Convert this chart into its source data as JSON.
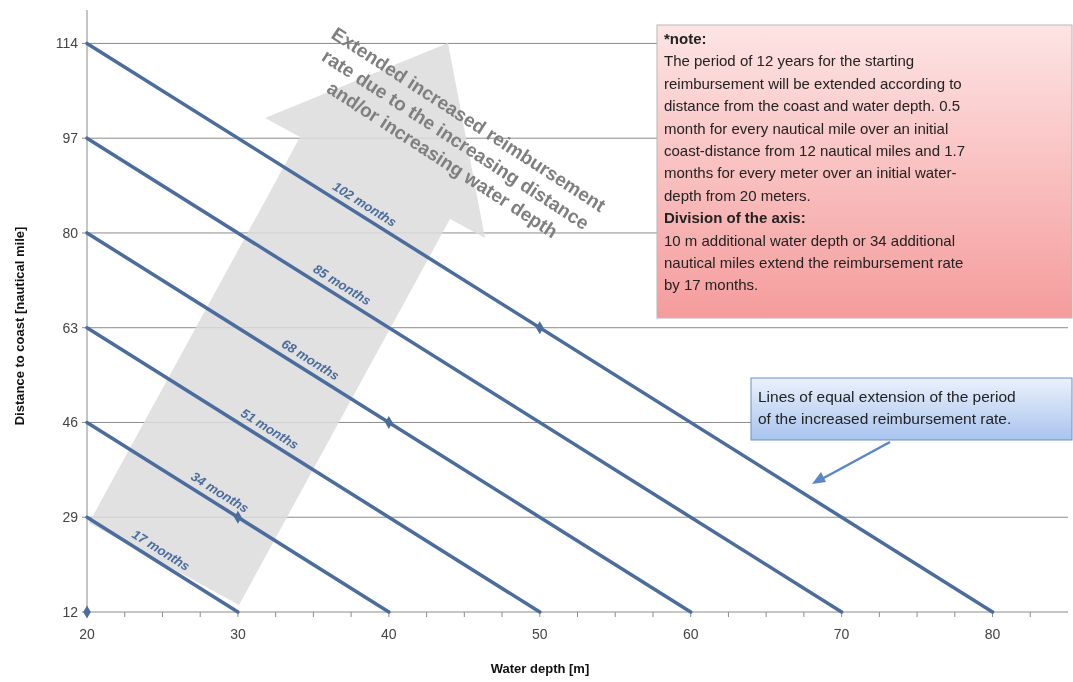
{
  "chart_data": {
    "type": "line",
    "xlabel": "Water depth [m]",
    "ylabel": "Distance to coast [nautical mile]",
    "xlim": [
      20,
      85
    ],
    "ylim": [
      12,
      120
    ],
    "xticks": [
      20,
      {
        "value": 22.5,
        "label": null
      },
      {
        "value": 25,
        "label": null
      },
      {
        "value": 27.5,
        "label": null
      },
      30,
      {
        "value": 32.5,
        "label": null
      },
      {
        "value": 35,
        "label": null
      },
      {
        "value": 37.5,
        "label": null
      },
      40,
      {
        "value": 42.5,
        "label": null
      },
      {
        "value": 45,
        "label": null
      },
      {
        "value": 47.5,
        "label": null
      },
      50,
      {
        "value": 52.5,
        "label": null
      },
      {
        "value": 55,
        "label": null
      },
      {
        "value": 57.5,
        "label": null
      },
      60,
      {
        "value": 62.5,
        "label": null
      },
      {
        "value": 65,
        "label": null
      },
      {
        "value": 67.5,
        "label": null
      },
      70,
      {
        "value": 72.5,
        "label": null
      },
      {
        "value": 75,
        "label": null
      },
      {
        "value": 77.5,
        "label": null
      },
      80,
      {
        "value": 82.5,
        "label": null
      }
    ],
    "yticks": [
      12,
      29,
      46,
      63,
      80,
      97,
      114
    ],
    "grid": "y",
    "line_style": "solid",
    "series": [
      {
        "name": "17 months",
        "color": "#4a6d9e",
        "x": [
          20,
          30
        ],
        "values": [
          29,
          12
        ],
        "marker": "none"
      },
      {
        "name": "34 months",
        "color": "#4a6d9e",
        "x": [
          20,
          40
        ],
        "values": [
          46,
          12
        ],
        "marker": "none"
      },
      {
        "name": "51 months",
        "color": "#4a6d9e",
        "x": [
          20,
          50
        ],
        "values": [
          63,
          12
        ],
        "marker": "none"
      },
      {
        "name": "68 months",
        "color": "#4a6d9e",
        "x": [
          20,
          60
        ],
        "values": [
          80,
          12
        ],
        "marker": "none"
      },
      {
        "name": "85 months",
        "color": "#4a6d9e",
        "x": [
          20,
          70
        ],
        "values": [
          97,
          12
        ],
        "marker": "none"
      },
      {
        "name": "102 months",
        "color": "#4a6d9e",
        "x": [
          20,
          80
        ],
        "values": [
          114,
          12
        ],
        "marker": "none"
      },
      {
        "type": "scatter",
        "color": "#4a6d9e",
        "x": [
          20,
          30,
          40,
          50
        ],
        "values": [
          12,
          29,
          46,
          63
        ],
        "marker": "diamond"
      }
    ],
    "annotations": [
      "*note:",
      "The period of 12 years for the starting",
      "reimbursement will be extended according to",
      "distance from  the coast and water depth. 0.5",
      "month for every nautical mile over an initial",
      "coast-distance from 12 nautical miles and 1.7",
      "months for every meter over an initial water-",
      "depth from 20 meters.",
      "Division of the axis:",
      "10 m additional water depth or 34 additional",
      "nautical miles extend the reimbursement rate",
      "by 17 months.",
      "Lines of equal extension of the period",
      "of the increased reimbursement rate.",
      "Extended increased reimbursement",
      "rate due to the increasing distance",
      "and/or increasing water depth"
    ]
  }
}
